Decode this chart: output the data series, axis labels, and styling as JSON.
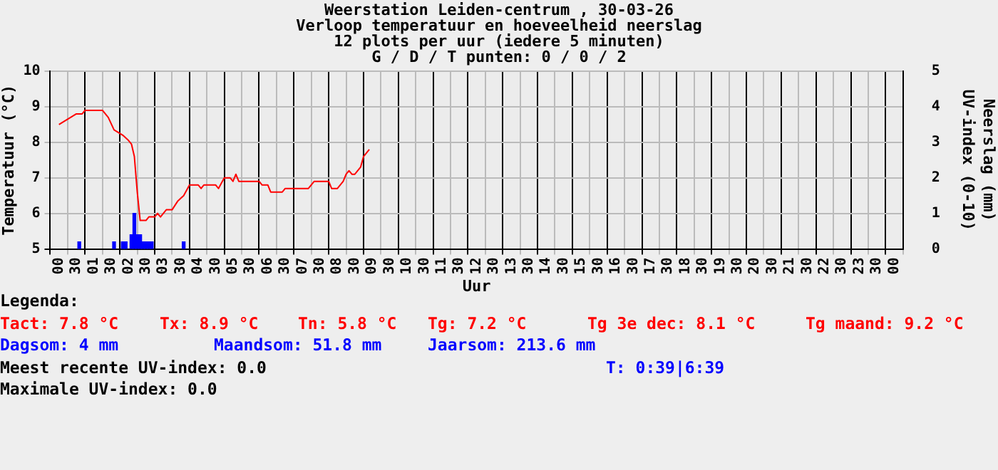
{
  "chart_data": {
    "type": "line",
    "title": "Weerstation Leiden-centrum , 30-03-26",
    "subtitle": "Verloop temperatuur en hoeveelheid neerslag\n12 plots per uur (iedere 5 minuten)\nG / D / T punten: 0 / 0 / 2",
    "xlabel": "Uur",
    "ylabel": "Temperatuur (°C)",
    "y2label": "Neerslag (mm)\nUV-index (0-10)",
    "xlim": [
      "--03-30T00:00",
      "--03-31T00:00"
    ],
    "xticks": [
      {
        "value": "--03-30T00:00",
        "label": "00"
      },
      {
        "value": "--03-30T00:30",
        "label": "30"
      },
      {
        "value": "--03-30T01:00",
        "label": "01"
      },
      {
        "value": "--03-30T01:30",
        "label": "30"
      },
      {
        "value": "--03-30T02:00",
        "label": "02"
      },
      {
        "value": "--03-30T02:30",
        "label": "30"
      },
      {
        "value": "--03-30T03:00",
        "label": "03"
      },
      {
        "value": "--03-30T03:30",
        "label": "30"
      },
      {
        "value": "--03-30T04:00",
        "label": "04"
      },
      {
        "value": "--03-30T04:30",
        "label": "30"
      },
      {
        "value": "--03-30T05:00",
        "label": "05"
      },
      {
        "value": "--03-30T05:30",
        "label": "30"
      },
      {
        "value": "--03-30T06:00",
        "label": "06"
      },
      {
        "value": "--03-30T06:30",
        "label": "30"
      },
      {
        "value": "--03-30T07:00",
        "label": "07"
      },
      {
        "value": "--03-30T07:30",
        "label": "30"
      },
      {
        "value": "--03-30T08:00",
        "label": "08"
      },
      {
        "value": "--03-30T08:30",
        "label": "30"
      },
      {
        "value": "--03-30T09:00",
        "label": "09"
      },
      {
        "value": "--03-30T09:30",
        "label": "30"
      },
      {
        "value": "--03-30T10:00",
        "label": "10"
      },
      {
        "value": "--03-30T10:30",
        "label": "30"
      },
      {
        "value": "--03-30T11:00",
        "label": "11"
      },
      {
        "value": "--03-30T11:30",
        "label": "30"
      },
      {
        "value": "--03-30T12:00",
        "label": "12"
      },
      {
        "value": "--03-30T12:30",
        "label": "30"
      },
      {
        "value": "--03-30T13:00",
        "label": "13"
      },
      {
        "value": "--03-30T13:30",
        "label": "30"
      },
      {
        "value": "--03-30T14:00",
        "label": "14"
      },
      {
        "value": "--03-30T14:30",
        "label": "30"
      },
      {
        "value": "--03-30T15:00",
        "label": "15"
      },
      {
        "value": "--03-30T15:30",
        "label": "30"
      },
      {
        "value": "--03-30T16:00",
        "label": "16"
      },
      {
        "value": "--03-30T16:30",
        "label": "30"
      },
      {
        "value": "--03-30T17:00",
        "label": "17"
      },
      {
        "value": "--03-30T17:30",
        "label": "30"
      },
      {
        "value": "--03-30T18:00",
        "label": "18"
      },
      {
        "value": "--03-30T18:30",
        "label": "30"
      },
      {
        "value": "--03-30T19:00",
        "label": "19"
      },
      {
        "value": "--03-30T19:30",
        "label": "30"
      },
      {
        "value": "--03-30T20:00",
        "label": "20"
      },
      {
        "value": "--03-30T20:30",
        "label": "30"
      },
      {
        "value": "--03-30T21:00",
        "label": "21"
      },
      {
        "value": "--03-30T21:30",
        "label": "30"
      },
      {
        "value": "--03-30T22:00",
        "label": "22"
      },
      {
        "value": "--03-30T22:30",
        "label": "30"
      },
      {
        "value": "--03-30T23:00",
        "label": "23"
      },
      {
        "value": "--03-30T23:30",
        "label": "30"
      },
      {
        "value": "--03-31T00:00",
        "label": "00"
      }
    ],
    "ylim": [
      5,
      10
    ],
    "yticks": [
      5,
      6,
      7,
      8,
      9,
      10
    ],
    "y2lim": [
      0,
      5
    ],
    "y2ticks": [
      0,
      1,
      2,
      3,
      4,
      5
    ],
    "grid": true,
    "legend": false,
    "marker": "none",
    "series": [
      {
        "color": "#ff0000",
        "x": [
          "--03-30T00:00",
          "--03-30T00:10",
          "--03-30T00:20",
          "--03-30T00:30",
          "--03-30T00:40",
          "--03-30T00:45",
          "--03-30T01:15",
          "--03-30T01:25",
          "--03-30T01:35",
          "--03-30T01:45",
          "--03-30T01:50",
          "--03-30T02:00",
          "--03-30T02:05",
          "--03-30T02:10",
          "--03-30T02:15",
          "--03-30T02:20",
          "--03-30T02:30",
          "--03-30T02:35",
          "--03-30T02:45",
          "--03-30T02:50",
          "--03-30T02:55",
          "--03-30T03:05",
          "--03-30T03:15",
          "--03-30T03:25",
          "--03-30T03:35",
          "--03-30T03:45",
          "--03-30T04:00",
          "--03-30T04:05",
          "--03-30T04:10",
          "--03-30T04:30",
          "--03-30T04:35",
          "--03-30T04:45",
          "--03-30T04:55",
          "--03-30T05:00",
          "--03-30T05:05",
          "--03-30T05:10",
          "--03-30T05:45",
          "--03-30T05:50",
          "--03-30T06:00",
          "--03-30T06:05",
          "--03-30T06:25",
          "--03-30T06:30",
          "--03-30T07:10",
          "--03-30T07:20",
          "--03-30T07:45",
          "--03-30T07:50",
          "--03-30T08:00",
          "--03-30T08:10",
          "--03-30T08:15",
          "--03-30T08:20",
          "--03-30T08:25",
          "--03-30T08:30",
          "--03-30T08:40",
          "--03-30T08:45",
          "--03-30T08:55"
        ],
        "values": [
          8.5,
          8.6,
          8.7,
          8.8,
          8.8,
          8.9,
          8.9,
          8.7,
          8.35,
          8.25,
          8.2,
          8.05,
          7.95,
          7.6,
          6.6,
          5.8,
          5.8,
          5.9,
          5.9,
          6.0,
          5.9,
          6.1,
          6.1,
          6.35,
          6.5,
          6.8,
          6.8,
          6.7,
          6.8,
          6.8,
          6.7,
          7.0,
          7.0,
          6.9,
          7.1,
          6.9,
          6.9,
          6.8,
          6.8,
          6.6,
          6.6,
          6.7,
          6.7,
          6.9,
          6.9,
          6.7,
          6.7,
          6.9,
          7.1,
          7.2,
          7.1,
          7.1,
          7.3,
          7.6,
          7.8
        ]
      },
      {
        "type": "bar",
        "axis": "y2",
        "color": "#0000ff",
        "x": [
          "--03-30T00:35",
          "--03-30T01:35",
          "--03-30T01:50",
          "--03-30T01:55",
          "--03-30T02:05",
          "--03-30T02:10",
          "--03-30T02:15",
          "--03-30T02:20",
          "--03-30T02:25",
          "--03-30T02:30",
          "--03-30T02:35",
          "--03-30T02:40",
          "--03-30T03:35"
        ],
        "values": [
          0.2,
          0.2,
          0.2,
          0.2,
          0.4,
          1.0,
          0.4,
          0.4,
          0.2,
          0.2,
          0.2,
          0.2,
          0.2
        ]
      }
    ],
    "annotations": [
      "Legenda:",
      "Tact: 7.8 °C",
      "Tx: 8.9 °C",
      "Tn: 5.8 °C",
      "Tg: 7.2 °C",
      "Tg 3e dec: 8.1 °C",
      "Tg maand: 9.2 °C",
      "Dagsom: 4 mm",
      "Maandsom: 51.8 mm",
      "Jaarsom: 213.6 mm",
      "Meest recente UV-index: 0.0",
      "T: 0:39|6:39",
      "Maximale UV-index: 0.0"
    ]
  }
}
